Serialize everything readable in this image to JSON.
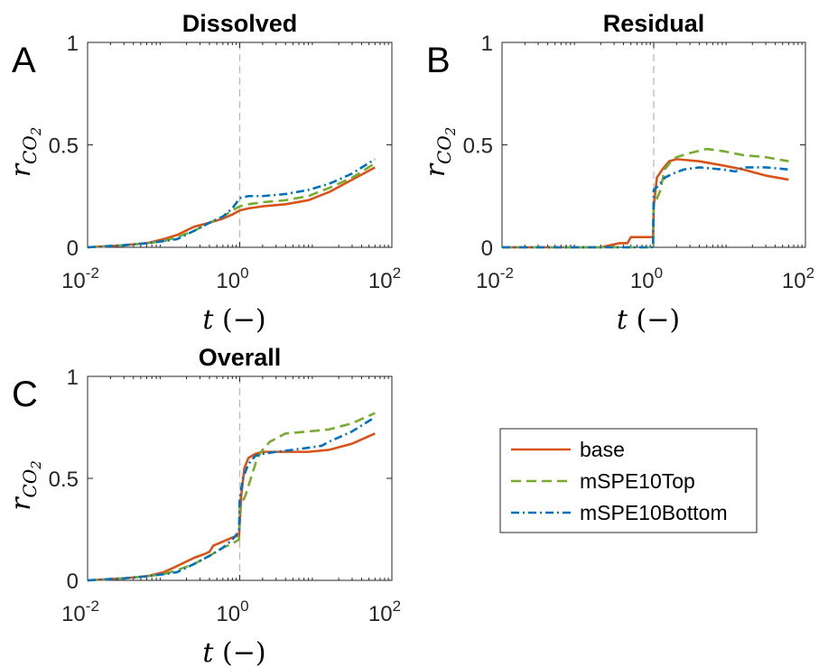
{
  "chart_data": [
    {
      "type": "line",
      "panel_letter": "A",
      "title": "Dissolved",
      "xlabel": "t (−)",
      "ylabel": "r_{CO_2}",
      "x_scale": "log",
      "xlim": [
        0.01,
        100
      ],
      "ylim": [
        0,
        1
      ],
      "x_ticks": [
        {
          "base": "10",
          "exp": "-2"
        },
        {
          "base": "10",
          "exp": "0"
        },
        {
          "base": "10",
          "exp": "2"
        }
      ],
      "y_ticks": [
        "0",
        "0.5",
        "1"
      ],
      "vline_x": 1,
      "grid": false,
      "series": [
        {
          "name": "base",
          "color": "#D95319",
          "dash": "solid",
          "x": [
            0.01,
            0.03,
            0.06,
            0.1,
            0.15,
            0.25,
            0.4,
            0.6,
            0.8,
            1.0,
            1.3,
            2,
            4,
            8,
            15,
            30,
            60
          ],
          "y": [
            0.0,
            0.01,
            0.02,
            0.04,
            0.06,
            0.1,
            0.12,
            0.14,
            0.16,
            0.18,
            0.19,
            0.2,
            0.21,
            0.23,
            0.27,
            0.33,
            0.39
          ]
        },
        {
          "name": "mSPE10Top",
          "color": "#77AC30",
          "dash": "dashed",
          "x": [
            0.01,
            0.03,
            0.06,
            0.1,
            0.15,
            0.25,
            0.4,
            0.6,
            0.8,
            1.0,
            1.3,
            2,
            4,
            8,
            15,
            30,
            60
          ],
          "y": [
            0.0,
            0.01,
            0.02,
            0.03,
            0.05,
            0.08,
            0.12,
            0.15,
            0.18,
            0.2,
            0.21,
            0.22,
            0.23,
            0.25,
            0.29,
            0.34,
            0.41
          ]
        },
        {
          "name": "mSPE10Bottom",
          "color": "#0072BD",
          "dash": "dashdot",
          "x": [
            0.01,
            0.03,
            0.06,
            0.1,
            0.15,
            0.25,
            0.4,
            0.6,
            0.8,
            1.0,
            1.3,
            2,
            4,
            8,
            15,
            30,
            60
          ],
          "y": [
            0.0,
            0.01,
            0.02,
            0.03,
            0.04,
            0.08,
            0.12,
            0.15,
            0.19,
            0.24,
            0.25,
            0.25,
            0.26,
            0.28,
            0.31,
            0.36,
            0.43
          ]
        }
      ]
    },
    {
      "type": "line",
      "panel_letter": "B",
      "title": "Residual",
      "xlabel": "t (−)",
      "ylabel": "r_{CO_2}",
      "x_scale": "log",
      "xlim": [
        0.01,
        100
      ],
      "ylim": [
        0,
        1
      ],
      "x_ticks": [
        {
          "base": "10",
          "exp": "-2"
        },
        {
          "base": "10",
          "exp": "0"
        },
        {
          "base": "10",
          "exp": "2"
        }
      ],
      "y_ticks": [
        "0",
        "0.5",
        "1"
      ],
      "vline_x": 1,
      "grid": false,
      "series": [
        {
          "name": "base",
          "color": "#D95319",
          "dash": "solid",
          "x": [
            0.01,
            0.1,
            0.2,
            0.35,
            0.45,
            0.5,
            0.98,
            1.0,
            1.1,
            1.3,
            1.6,
            2,
            4,
            8,
            15,
            30,
            60
          ],
          "y": [
            0.0,
            0.0,
            0.0,
            0.02,
            0.02,
            0.05,
            0.05,
            0.2,
            0.34,
            0.38,
            0.42,
            0.43,
            0.42,
            0.4,
            0.38,
            0.35,
            0.33
          ]
        },
        {
          "name": "mSPE10Top",
          "color": "#77AC30",
          "dash": "dashed",
          "x": [
            0.01,
            0.1,
            0.5,
            0.98,
            1.0,
            1.2,
            1.4,
            1.7,
            2,
            3,
            5,
            8,
            15,
            30,
            60
          ],
          "y": [
            0.0,
            0.0,
            0.0,
            0.0,
            0.2,
            0.27,
            0.38,
            0.42,
            0.44,
            0.46,
            0.48,
            0.47,
            0.45,
            0.44,
            0.42
          ]
        },
        {
          "name": "mSPE10Bottom",
          "color": "#0072BD",
          "dash": "dashdot",
          "x": [
            0.01,
            0.1,
            0.5,
            0.98,
            1.0,
            1.15,
            1.4,
            1.8,
            2.5,
            4,
            8,
            12,
            15,
            30,
            60
          ],
          "y": [
            0.0,
            0.0,
            0.0,
            0.0,
            0.28,
            0.3,
            0.34,
            0.36,
            0.38,
            0.39,
            0.38,
            0.37,
            0.39,
            0.39,
            0.38
          ]
        }
      ]
    },
    {
      "type": "line",
      "panel_letter": "C",
      "title": "Overall",
      "xlabel": "t (−)",
      "ylabel": "r_{CO_2}",
      "x_scale": "log",
      "xlim": [
        0.01,
        100
      ],
      "ylim": [
        0,
        1
      ],
      "x_ticks": [
        {
          "base": "10",
          "exp": "-2"
        },
        {
          "base": "10",
          "exp": "0"
        },
        {
          "base": "10",
          "exp": "2"
        }
      ],
      "y_ticks": [
        "0",
        "0.5",
        "1"
      ],
      "vline_x": 1,
      "grid": false,
      "series": [
        {
          "name": "base",
          "color": "#D95319",
          "dash": "solid",
          "x": [
            0.01,
            0.03,
            0.06,
            0.1,
            0.15,
            0.25,
            0.35,
            0.4,
            0.45,
            0.6,
            0.8,
            0.98,
            1.05,
            1.15,
            1.3,
            1.6,
            2,
            4,
            8,
            15,
            30,
            60
          ],
          "y": [
            0.0,
            0.01,
            0.02,
            0.04,
            0.07,
            0.11,
            0.13,
            0.14,
            0.17,
            0.19,
            0.21,
            0.22,
            0.42,
            0.55,
            0.6,
            0.62,
            0.63,
            0.63,
            0.63,
            0.64,
            0.67,
            0.72
          ]
        },
        {
          "name": "mSPE10Top",
          "color": "#77AC30",
          "dash": "dashed",
          "x": [
            0.01,
            0.03,
            0.06,
            0.1,
            0.15,
            0.25,
            0.4,
            0.6,
            0.8,
            0.98,
            1.0,
            1.2,
            1.4,
            1.7,
            2,
            2.5,
            4,
            8,
            15,
            30,
            60
          ],
          "y": [
            0.0,
            0.01,
            0.02,
            0.03,
            0.05,
            0.08,
            0.12,
            0.16,
            0.18,
            0.2,
            0.35,
            0.42,
            0.5,
            0.6,
            0.64,
            0.68,
            0.72,
            0.73,
            0.74,
            0.77,
            0.82
          ]
        },
        {
          "name": "mSPE10Bottom",
          "color": "#0072BD",
          "dash": "dashdot",
          "x": [
            0.01,
            0.03,
            0.06,
            0.1,
            0.15,
            0.25,
            0.4,
            0.6,
            0.8,
            0.98,
            1.0,
            1.1,
            1.3,
            1.6,
            2,
            3,
            5,
            8,
            12,
            15,
            30,
            60
          ],
          "y": [
            0.0,
            0.01,
            0.02,
            0.03,
            0.04,
            0.08,
            0.12,
            0.16,
            0.2,
            0.24,
            0.4,
            0.5,
            0.57,
            0.61,
            0.62,
            0.63,
            0.64,
            0.65,
            0.66,
            0.68,
            0.73,
            0.8
          ]
        }
      ]
    }
  ],
  "legend": {
    "entries": [
      {
        "label": "base",
        "color": "#D95319",
        "dash": "solid"
      },
      {
        "label": "mSPE10Top",
        "color": "#77AC30",
        "dash": "dashed"
      },
      {
        "label": "mSPE10Bottom",
        "color": "#0072BD",
        "dash": "dashdot"
      }
    ]
  },
  "colors": {
    "axis": "#262626",
    "vline": "#BBBBBB"
  }
}
